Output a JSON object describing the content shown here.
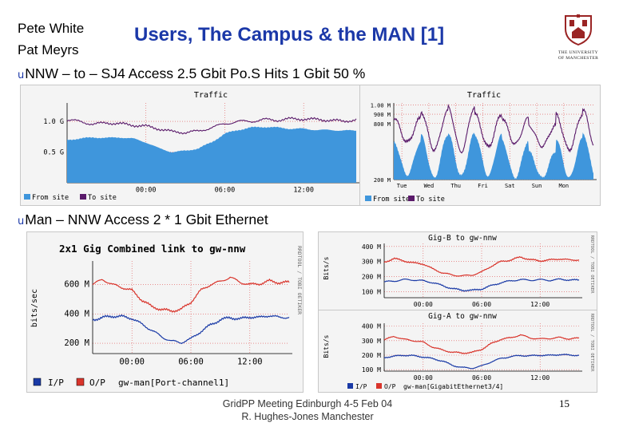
{
  "header": {
    "authors": [
      "Pete White",
      "Pat Meyrs"
    ],
    "title": "Users, The Campus & the MAN [1]",
    "logo_text": [
      "THE UNIVERSITY",
      "OF MANCHESTER"
    ],
    "icon": "university-crest-icon",
    "accent_color": "#1b38a8"
  },
  "bullets": {
    "mark": "u",
    "nnw": "NNW – to – SJ4 Access 2.5 Gbit Po.S Hits 1 Gbit 50 %",
    "man": "Man – NNW Access 2 * 1 Gbit Ethernet"
  },
  "footer": {
    "line1": "GridPP Meeting Edinburgh 4-5 Feb 04",
    "line2": "R. Hughes-Jones Manchester",
    "page": "15"
  },
  "chart_data": [
    {
      "id": "traffic_daily",
      "type": "area",
      "title": "Traffic",
      "x_ticks": [
        "00:00",
        "06:00",
        "12:00"
      ],
      "xlim": [
        -6,
        16
      ],
      "y_ticks": [
        "1.0 G",
        "0.5 G"
      ],
      "y_tick_values": [
        1.0,
        0.5
      ],
      "ylim": [
        0,
        1.3
      ],
      "legend": [
        "From site",
        "To site"
      ],
      "legend_placement": "bottom-left",
      "colors": {
        "from_site": "#3f96dc",
        "to_site": "#5a1a6a"
      },
      "x": [
        -6,
        -5,
        -4,
        -3,
        -2,
        -1,
        0,
        1,
        2,
        3,
        4,
        5,
        6,
        7,
        8,
        9,
        10,
        11,
        12,
        13,
        14,
        15,
        16
      ],
      "series": [
        {
          "name": "From site",
          "values": [
            0.7,
            0.72,
            0.74,
            0.73,
            0.74,
            0.72,
            0.66,
            0.56,
            0.5,
            0.52,
            0.56,
            0.66,
            0.8,
            0.86,
            0.9,
            0.91,
            0.9,
            0.88,
            0.88,
            0.86,
            0.86,
            0.85,
            0.85
          ]
        },
        {
          "name": "To site",
          "values": [
            1.02,
            1.0,
            0.95,
            0.98,
            0.96,
            0.94,
            0.92,
            0.88,
            0.83,
            0.82,
            0.84,
            0.9,
            0.96,
            1.0,
            1.0,
            1.03,
            1.02,
            1.04,
            1.04,
            1.03,
            1.02,
            1.0,
            1.03
          ]
        }
      ]
    },
    {
      "id": "traffic_weekly",
      "type": "area",
      "title": "Traffic",
      "x_ticks": [
        "Tue",
        "Wed",
        "Thu",
        "Fri",
        "Sat",
        "Sun",
        "Mon"
      ],
      "xlim": [
        0,
        7.4
      ],
      "y_ticks": [
        "1.00 M",
        "900 M",
        "800 M",
        "200 M"
      ],
      "y_tick_values": [
        1.0,
        0.9,
        0.8,
        0.2
      ],
      "ylim": [
        0.2,
        1.02
      ],
      "legend": [
        "From site",
        "To site"
      ],
      "legend_placement": "bottom-left",
      "colors": {
        "from_site": "#3f96dc",
        "to_site": "#5a1a6a"
      },
      "day_peaks_from": [
        0.6,
        0.68,
        0.7,
        0.68,
        0.62,
        0.5,
        0.64,
        0.7
      ],
      "day_lows_from": [
        0.25,
        0.22,
        0.24,
        0.24,
        0.22,
        0.22,
        0.22
      ],
      "day_peaks_to": [
        0.86,
        0.93,
        0.98,
        0.9,
        0.86,
        0.78,
        0.9,
        0.95
      ],
      "day_lows_to": [
        0.6,
        0.52,
        0.5,
        0.55,
        0.58,
        0.56,
        0.52
      ]
    },
    {
      "id": "combined_link",
      "type": "line",
      "title": "2x1 Gig Combined link to gw-nnw",
      "ylabel": "bits/sec",
      "side_label": "RRDTOOL / TOBI OETIKER",
      "x_ticks": [
        "00:00",
        "06:00",
        "12:00"
      ],
      "xlim": [
        -4,
        16
      ],
      "y_ticks": [
        "600 M",
        "400 M",
        "200 M"
      ],
      "y_tick_values": [
        600,
        400,
        200
      ],
      "ylim": [
        130,
        760
      ],
      "legend": [
        "I/P",
        "O/P",
        "gw-man[Port-channel1]"
      ],
      "legend_placement": "bottom-left",
      "colors": {
        "ip": "#1a3aa6",
        "op": "#d9342b"
      },
      "x": [
        -4,
        -3,
        -2,
        -1,
        0,
        1,
        2,
        3,
        4,
        5,
        6,
        7,
        8,
        9,
        10,
        11,
        12,
        13,
        14,
        15,
        16
      ],
      "series": [
        {
          "name": "I/P",
          "values": [
            360,
            375,
            385,
            382,
            370,
            330,
            290,
            245,
            215,
            205,
            230,
            280,
            325,
            360,
            375,
            365,
            380,
            375,
            390,
            375,
            378
          ]
        },
        {
          "name": "O/P",
          "values": [
            600,
            635,
            600,
            580,
            560,
            495,
            450,
            430,
            420,
            430,
            480,
            560,
            600,
            620,
            650,
            615,
            600,
            605,
            625,
            612,
            615
          ]
        }
      ]
    },
    {
      "id": "gig_b",
      "type": "line",
      "title": "Gig-B to gw-nnw",
      "ylabel": "Bits/s",
      "side_label": "RRDTOOL / TOBI OETIKER",
      "x_ticks": [
        "00:00",
        "06:00",
        "12:00"
      ],
      "xlim": [
        -4,
        16
      ],
      "y_ticks": [
        "400 M",
        "300 M",
        "200 M",
        "100 M"
      ],
      "y_tick_values": [
        400,
        300,
        200,
        100
      ],
      "ylim": [
        60,
        420
      ],
      "colors": {
        "ip": "#1a3aa6",
        "op": "#d9342b"
      },
      "x": [
        -4,
        -3,
        -2,
        -1,
        0,
        1,
        2,
        3,
        4,
        5,
        6,
        7,
        8,
        9,
        10,
        11,
        12,
        13,
        14,
        15,
        16
      ],
      "series": [
        {
          "name": "I/P",
          "values": [
            165,
            170,
            180,
            178,
            172,
            160,
            140,
            120,
            110,
            108,
            118,
            140,
            160,
            172,
            180,
            176,
            180,
            175,
            182,
            178,
            176
          ]
        },
        {
          "name": "O/P",
          "values": [
            295,
            320,
            305,
            290,
            285,
            250,
            225,
            210,
            205,
            210,
            230,
            270,
            300,
            310,
            330,
            312,
            305,
            310,
            318,
            310,
            312
          ]
        }
      ]
    },
    {
      "id": "gig_a",
      "type": "line",
      "title": "Gig-A to gw-nnw",
      "ylabel": "Bits/s",
      "side_label": "RRDTOOL / TOBI OETIKER",
      "x_ticks": [
        "00:00",
        "06:00",
        "12:00"
      ],
      "xlim": [
        -4,
        16
      ],
      "y_ticks": [
        "400 M",
        "300 M",
        "200 M",
        "100 M"
      ],
      "y_tick_values": [
        400,
        300,
        200,
        100
      ],
      "ylim": [
        90,
        420
      ],
      "legend": [
        "I/P",
        "O/P",
        "gw-man[GigabitEthernet3/4]"
      ],
      "legend_placement": "bottom-left",
      "colors": {
        "ip": "#1a3aa6",
        "op": "#d9342b"
      },
      "x": [
        -4,
        -3,
        -2,
        -1,
        0,
        1,
        2,
        3,
        4,
        5,
        6,
        7,
        8,
        9,
        10,
        11,
        12,
        13,
        14,
        15,
        16
      ],
      "series": [
        {
          "name": "I/P",
          "values": [
            185,
            192,
            200,
            196,
            188,
            175,
            160,
            130,
            115,
            110,
            125,
            155,
            178,
            190,
            198,
            195,
            200,
            198,
            205,
            200,
            200
          ]
        },
        {
          "name": "O/P",
          "values": [
            305,
            330,
            310,
            300,
            290,
            255,
            235,
            220,
            215,
            218,
            240,
            280,
            310,
            320,
            340,
            318,
            312,
            315,
            322,
            312,
            318
          ]
        }
      ]
    }
  ]
}
